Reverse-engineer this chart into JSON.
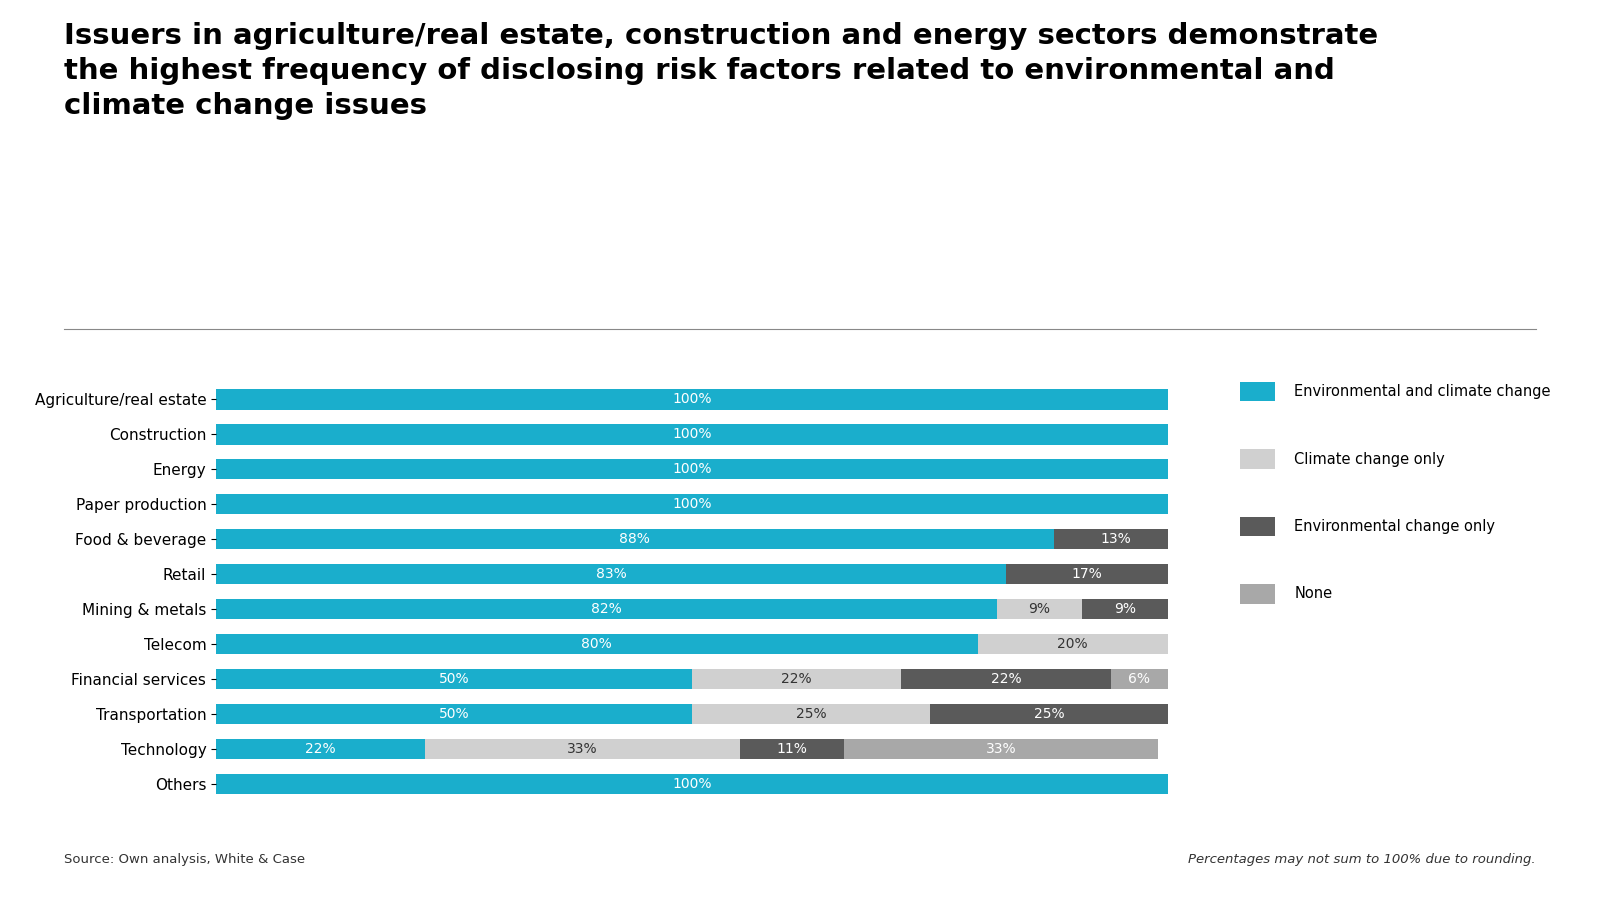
{
  "title": "Issuers in agriculture/real estate, construction and energy sectors demonstrate\nthe highest frequency of disclosing risk factors related to environmental and\nclimate change issues",
  "categories": [
    "Agriculture/real estate",
    "Construction",
    "Energy",
    "Paper production",
    "Food & beverage",
    "Retail",
    "Mining & metals",
    "Telecom",
    "Financial services",
    "Transportation",
    "Technology",
    "Others"
  ],
  "env_climate": [
    100,
    100,
    100,
    100,
    88,
    83,
    82,
    80,
    50,
    50,
    22,
    100
  ],
  "climate_only": [
    0,
    0,
    0,
    0,
    0,
    0,
    9,
    20,
    22,
    25,
    33,
    0
  ],
  "env_only": [
    0,
    0,
    0,
    0,
    13,
    17,
    9,
    0,
    22,
    25,
    11,
    0
  ],
  "none": [
    0,
    0,
    0,
    0,
    0,
    0,
    0,
    0,
    6,
    0,
    33,
    0
  ],
  "color_env_climate": "#1AAECC",
  "color_climate_only": "#D0D0D0",
  "color_env_only": "#5A5A5A",
  "color_none": "#A8A8A8",
  "legend_labels": [
    "Environmental and climate change",
    "Climate change only",
    "Environmental change only",
    "None"
  ],
  "source_text": "Source: Own analysis, White & Case",
  "note_text": "Percentages may not sum to 100% due to rounding.",
  "background_color": "#FFFFFF",
  "title_fontsize": 21,
  "label_fontsize": 11,
  "bar_label_fontsize": 10
}
